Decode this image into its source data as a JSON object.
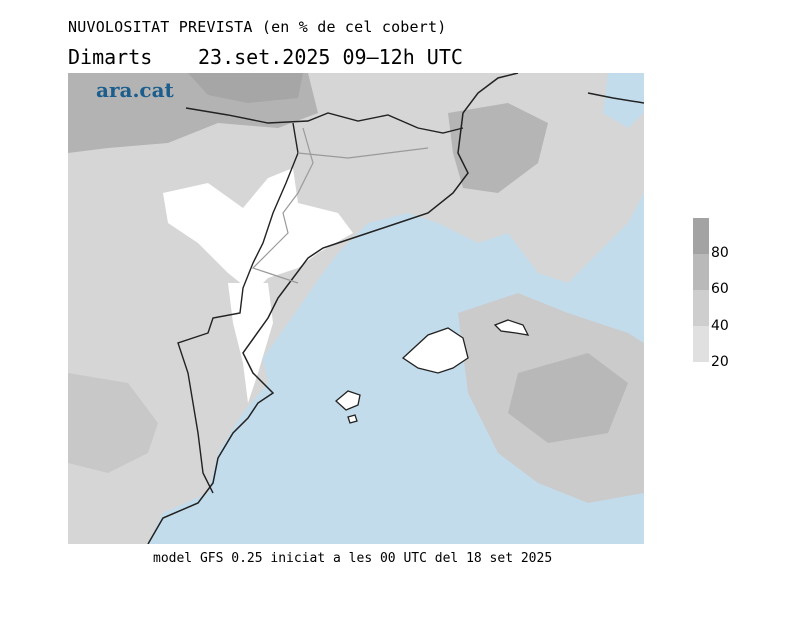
{
  "title": "NUVOLOSITAT PREVISTA (en % de cel cobert)",
  "day": "Dimarts",
  "date_range": "23.set.2025 09–12h UTC",
  "logo": "ara.cat",
  "footer": "model GFS 0.25 iniciat a les 00 UTC del 18 set 2025",
  "legend": {
    "unit": "% de cel cobert",
    "labels": [
      "80",
      "60",
      "40",
      "20"
    ],
    "colors": [
      "#a3a3a3",
      "#b9b9b9",
      "#cecece",
      "#e0e0e0"
    ],
    "sea_color": "#c3dcec",
    "clear_color": "#ffffff"
  }
}
